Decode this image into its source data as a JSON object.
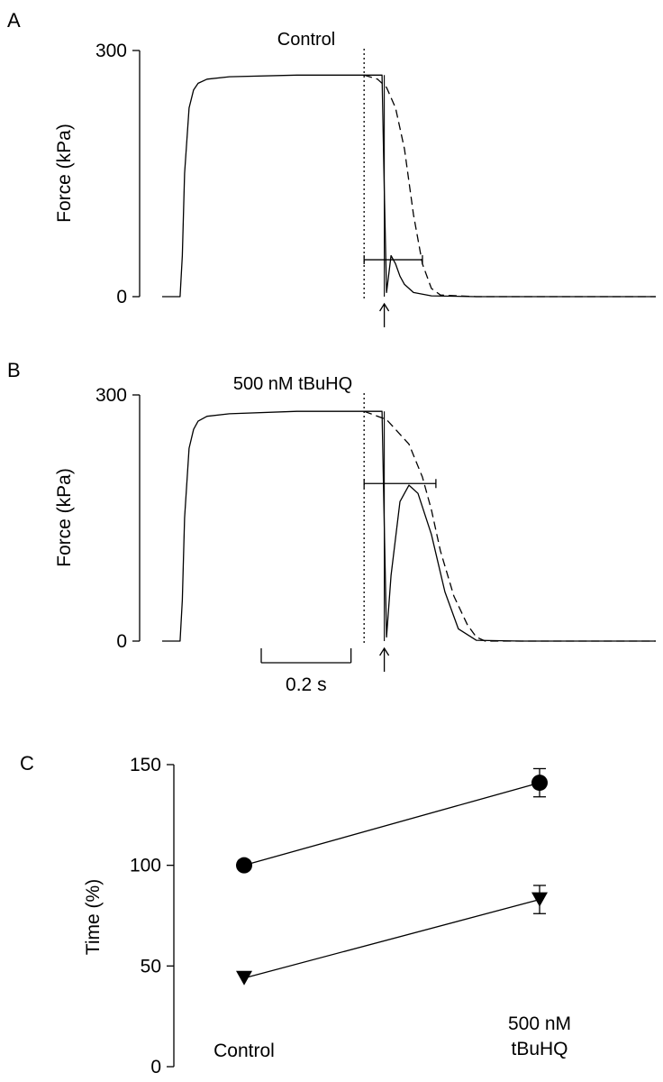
{
  "chart_data": [
    {
      "type": "line",
      "panel": "A",
      "title": "Control",
      "ylabel": "Force (kPa)",
      "ylim": [
        0,
        300
      ],
      "yticks": [
        "0",
        "300"
      ],
      "xlim": [
        0,
        1.1
      ],
      "x_units": "s",
      "series": [
        {
          "style": "solid",
          "x": [
            0.0,
            0.04,
            0.045,
            0.05,
            0.06,
            0.07,
            0.08,
            0.1,
            0.15,
            0.3,
            0.45,
            0.49,
            0.495,
            0.5,
            0.51,
            0.52,
            0.53,
            0.54,
            0.56,
            0.6,
            0.7,
            0.8,
            1.1
          ],
          "y": [
            0,
            0,
            50,
            150,
            230,
            252,
            260,
            265,
            268,
            270,
            270,
            270,
            130,
            5,
            50,
            40,
            25,
            15,
            5,
            1,
            0,
            0,
            0
          ]
        },
        {
          "style": "dashed",
          "x": [
            0.45,
            0.48,
            0.5,
            0.52,
            0.54,
            0.56,
            0.58,
            0.6,
            0.62,
            0.7,
            1.1
          ],
          "y": [
            270,
            265,
            255,
            230,
            180,
            100,
            40,
            10,
            2,
            0,
            0
          ]
        }
      ],
      "annotations": {
        "dotted_line_x": 0.45,
        "time_bar_x": [
          0.45,
          0.58
        ],
        "time_bar_y": 45,
        "arrow_x": 0.495
      }
    },
    {
      "type": "line",
      "panel": "B",
      "title": "500 nM tBuHQ",
      "ylabel": "Force (kPa)",
      "ylim": [
        0,
        300
      ],
      "yticks": [
        "0",
        "300"
      ],
      "xlim": [
        0,
        1.1
      ],
      "x_units": "s",
      "series": [
        {
          "style": "solid",
          "x": [
            0.0,
            0.04,
            0.045,
            0.05,
            0.06,
            0.07,
            0.08,
            0.1,
            0.15,
            0.3,
            0.45,
            0.49,
            0.495,
            0.5,
            0.51,
            0.53,
            0.55,
            0.57,
            0.6,
            0.63,
            0.66,
            0.7,
            0.8,
            1.1
          ],
          "y": [
            0,
            0,
            50,
            150,
            235,
            258,
            268,
            274,
            277,
            280,
            280,
            280,
            140,
            5,
            80,
            170,
            190,
            180,
            130,
            60,
            15,
            1,
            0,
            0
          ]
        },
        {
          "style": "dashed",
          "x": [
            0.45,
            0.5,
            0.55,
            0.58,
            0.6,
            0.62,
            0.65,
            0.68,
            0.7,
            0.72,
            0.8,
            1.1
          ],
          "y": [
            280,
            270,
            240,
            200,
            160,
            110,
            55,
            20,
            5,
            0,
            0,
            0
          ]
        }
      ],
      "annotations": {
        "dotted_line_x": 0.45,
        "time_bar_x": [
          0.45,
          0.61
        ],
        "time_bar_y": 192,
        "arrow_x": 0.495
      },
      "scale_bar": {
        "duration_s": 0.2,
        "label": "0.2 s"
      }
    },
    {
      "type": "line",
      "panel": "C",
      "ylabel": "Time (%)",
      "ylim": [
        0,
        150
      ],
      "yticks": [
        "0",
        "50",
        "100",
        "150"
      ],
      "categories": [
        "Control",
        "500 nM\ntBuHQ"
      ],
      "series": [
        {
          "marker": "circle",
          "values": [
            100,
            141
          ],
          "errors": [
            0,
            7
          ]
        },
        {
          "marker": "triangle-down",
          "values": [
            44,
            83
          ],
          "errors": [
            0,
            7
          ]
        }
      ]
    }
  ]
}
